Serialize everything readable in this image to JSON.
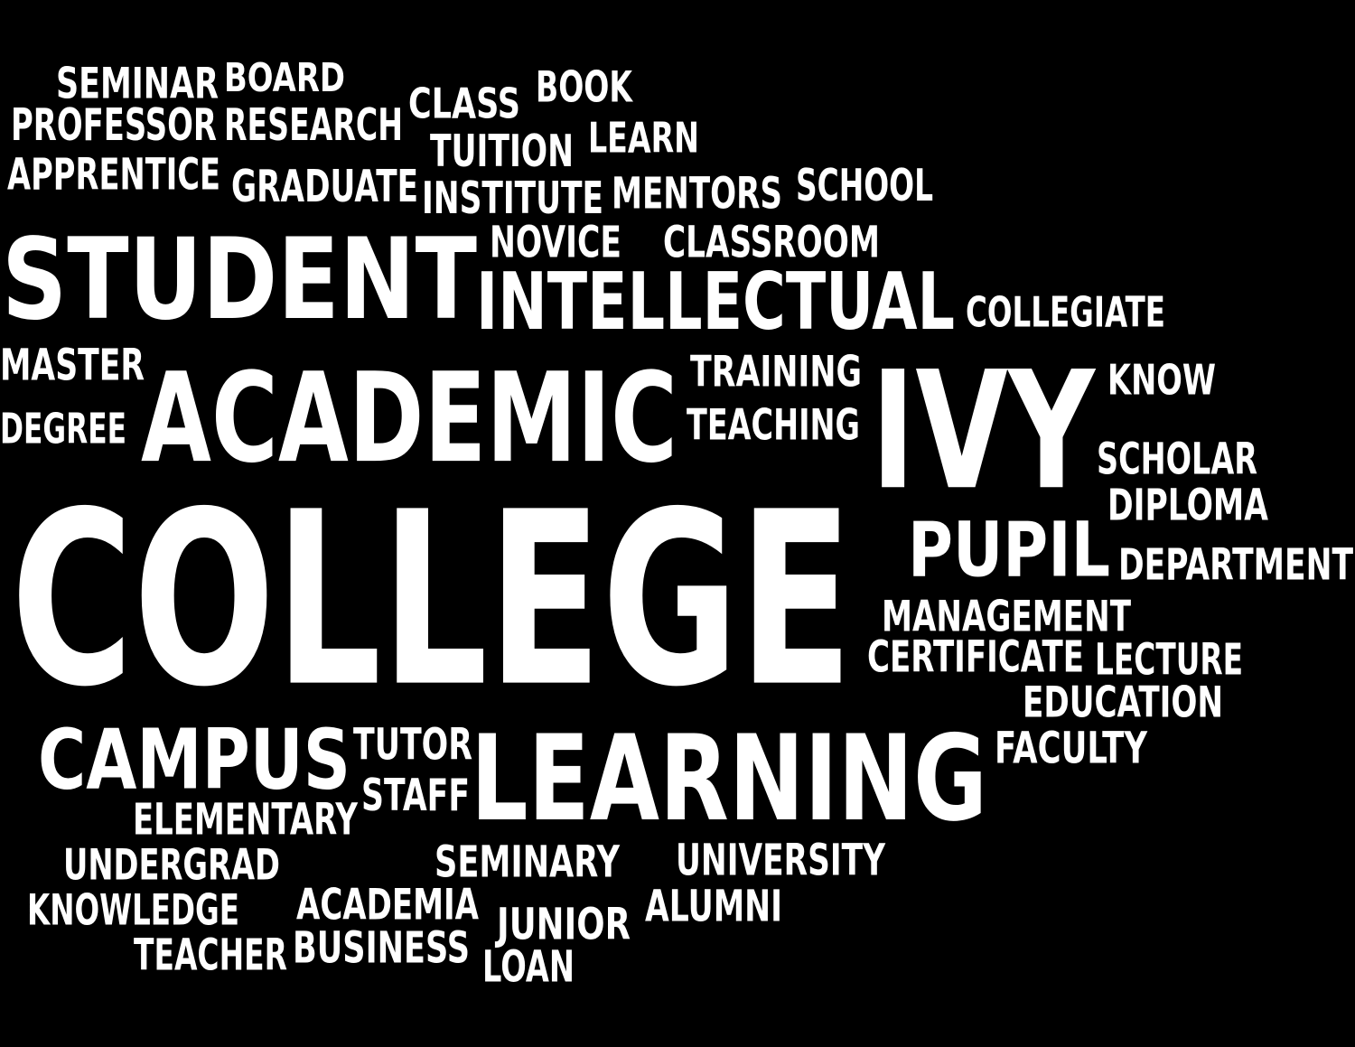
{
  "colors": {
    "background": "#000000",
    "text": "#ffffff"
  },
  "words": [
    {
      "id": "college",
      "text": "COLLEGE"
    },
    {
      "id": "student",
      "text": "STUDENT"
    },
    {
      "id": "academic",
      "text": "ACADEMIC"
    },
    {
      "id": "learning",
      "text": "LEARNING"
    },
    {
      "id": "ivy",
      "text": "IVY"
    },
    {
      "id": "intellectual",
      "text": "INTELLECTUAL"
    },
    {
      "id": "campus",
      "text": "CAMPUS"
    },
    {
      "id": "pupil",
      "text": "PUPIL"
    },
    {
      "id": "seminar",
      "text": "SEMINAR"
    },
    {
      "id": "board",
      "text": "BOARD"
    },
    {
      "id": "professor",
      "text": "PROFESSOR"
    },
    {
      "id": "research",
      "text": "RESEARCH"
    },
    {
      "id": "class",
      "text": "CLASS"
    },
    {
      "id": "book",
      "text": "BOOK"
    },
    {
      "id": "learn",
      "text": "LEARN"
    },
    {
      "id": "tuition",
      "text": "TUITION"
    },
    {
      "id": "apprentice",
      "text": "APPRENTICE"
    },
    {
      "id": "graduate",
      "text": "GRADUATE"
    },
    {
      "id": "institute",
      "text": "INSTITUTE"
    },
    {
      "id": "mentors",
      "text": "MENTORS"
    },
    {
      "id": "school",
      "text": "SCHOOL"
    },
    {
      "id": "novice",
      "text": "NOVICE"
    },
    {
      "id": "classroom",
      "text": "CLASSROOM"
    },
    {
      "id": "collegiate",
      "text": "COLLEGIATE"
    },
    {
      "id": "master",
      "text": "MASTER"
    },
    {
      "id": "training",
      "text": "TRAINING"
    },
    {
      "id": "know",
      "text": "KNOW"
    },
    {
      "id": "degree",
      "text": "DEGREE"
    },
    {
      "id": "teaching",
      "text": "TEACHING"
    },
    {
      "id": "scholar",
      "text": "SCHOLAR"
    },
    {
      "id": "diploma",
      "text": "DIPLOMA"
    },
    {
      "id": "department",
      "text": "DEPARTMENT"
    },
    {
      "id": "management",
      "text": "MANAGEMENT"
    },
    {
      "id": "certificate",
      "text": "CERTIFICATE"
    },
    {
      "id": "lecture",
      "text": "LECTURE"
    },
    {
      "id": "education",
      "text": "EDUCATION"
    },
    {
      "id": "faculty",
      "text": "FACULTY"
    },
    {
      "id": "tutor",
      "text": "TUTOR"
    },
    {
      "id": "staff",
      "text": "STAFF"
    },
    {
      "id": "elementary",
      "text": "ELEMENTARY"
    },
    {
      "id": "undergrad",
      "text": "UNDERGRAD"
    },
    {
      "id": "seminary",
      "text": "SEMINARY"
    },
    {
      "id": "university",
      "text": "UNIVERSITY"
    },
    {
      "id": "knowledge",
      "text": "KNOWLEDGE"
    },
    {
      "id": "academia",
      "text": "ACADEMIA"
    },
    {
      "id": "alumni",
      "text": "ALUMNI"
    },
    {
      "id": "junior",
      "text": "JUNIOR"
    },
    {
      "id": "teacher",
      "text": "TEACHER"
    },
    {
      "id": "business",
      "text": "BUSINESS"
    },
    {
      "id": "loan",
      "text": "LOAN"
    }
  ]
}
